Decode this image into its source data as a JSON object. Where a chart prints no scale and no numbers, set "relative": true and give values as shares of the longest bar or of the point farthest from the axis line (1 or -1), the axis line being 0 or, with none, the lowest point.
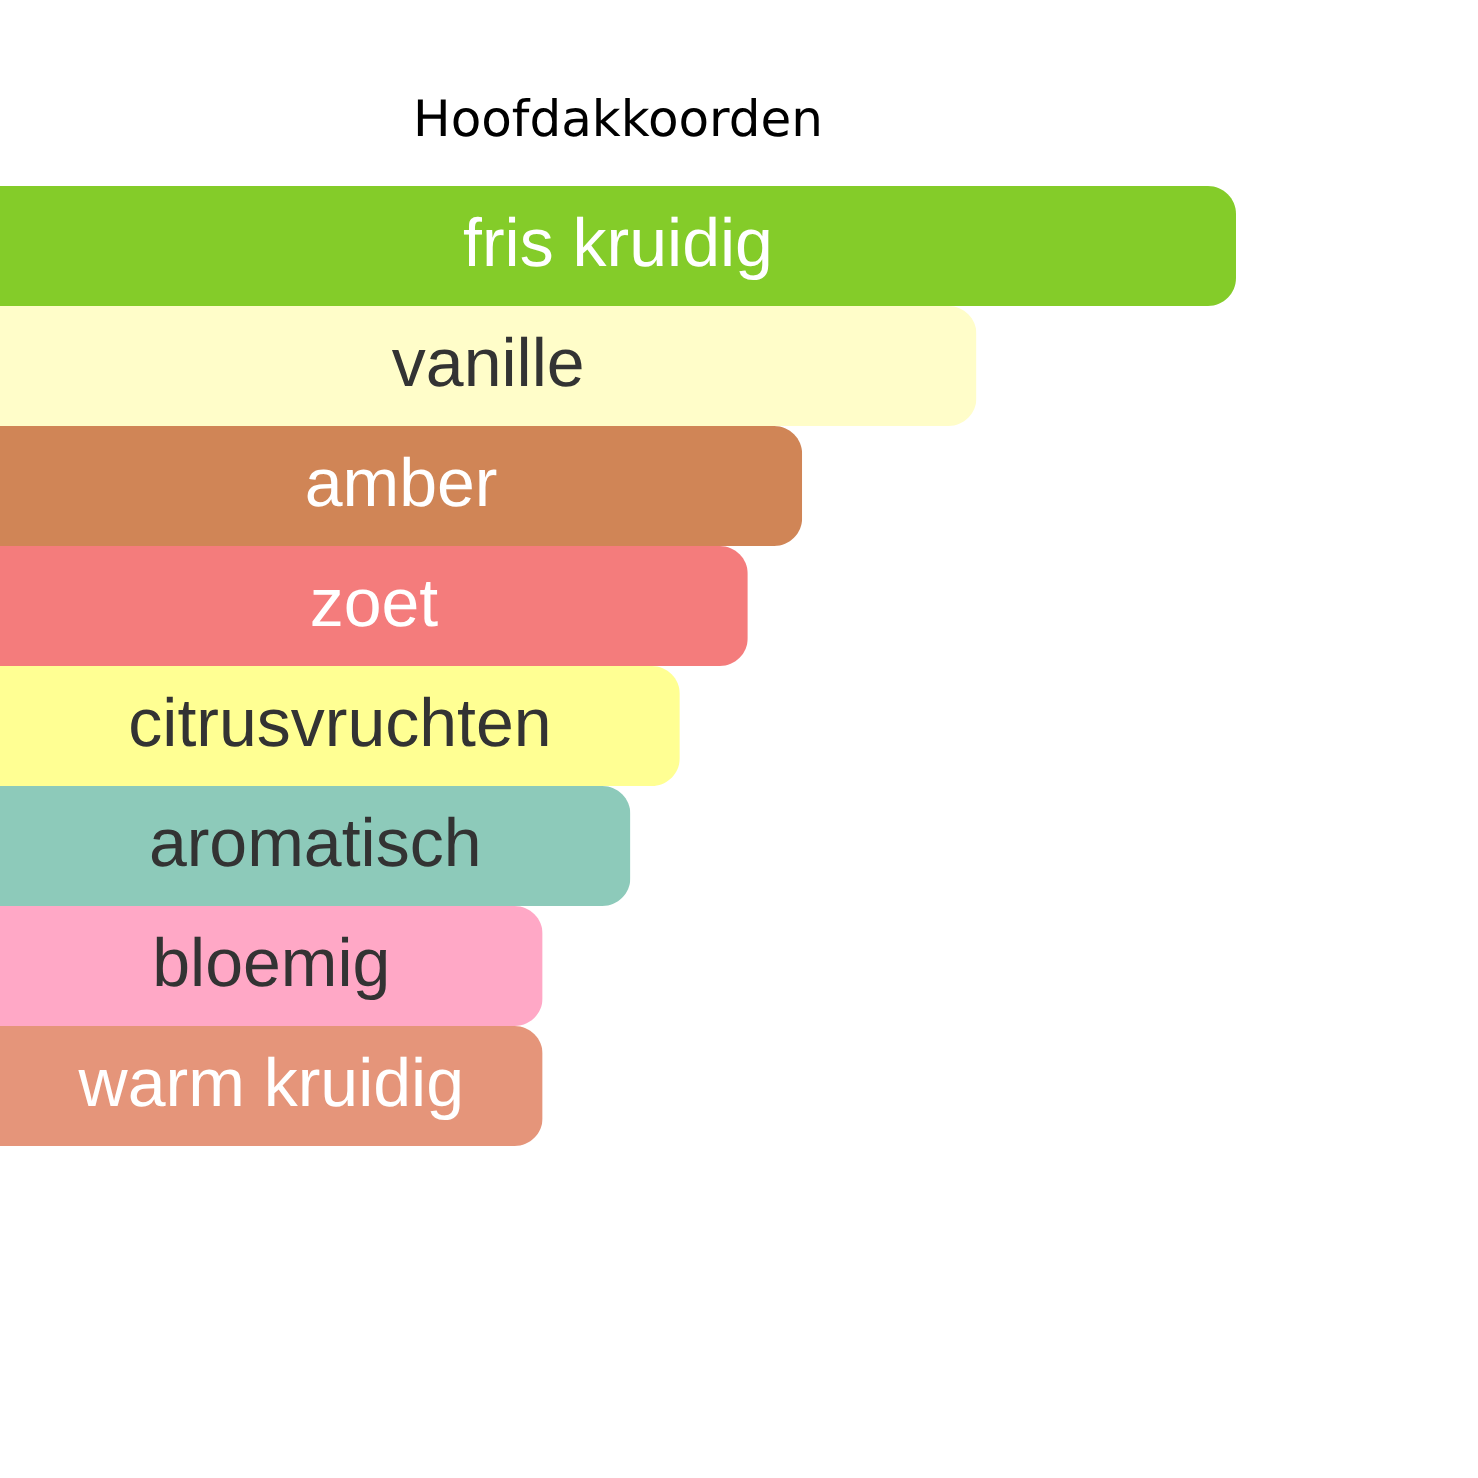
{
  "chart_data": {
    "type": "bar",
    "orientation": "horizontal",
    "relative": true,
    "title": "Hoofdakkoorden",
    "categories": [
      "fris kruidig",
      "vanille",
      "amber",
      "zoet",
      "citrusvruchten",
      "aromatisch",
      "bloemig",
      "warm kruidig"
    ],
    "values": [
      1,
      0.79,
      0.649,
      0.605,
      0.55,
      0.51,
      0.439,
      0.439
    ],
    "colors": [
      "#84cc29",
      "#fffdc9",
      "#d08556",
      "#f47c7c",
      "#ffff93",
      "#8dcaba",
      "#ffa8c6",
      "#e5957a"
    ]
  }
}
